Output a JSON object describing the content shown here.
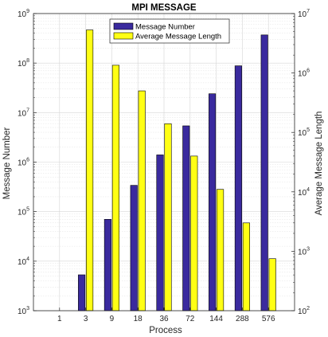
{
  "chart_data": {
    "type": "bar",
    "title": "MPI MESSAGE",
    "xlabel": "Process",
    "categories": [
      "1",
      "3",
      "9",
      "18",
      "36",
      "72",
      "144",
      "288",
      "576"
    ],
    "left_axis": {
      "label": "Message Number",
      "scale": "log",
      "ylim": [
        1000,
        1000000000
      ],
      "ticks": [
        {
          "base": "10",
          "exp": "3"
        },
        {
          "base": "10",
          "exp": "4"
        },
        {
          "base": "10",
          "exp": "5"
        },
        {
          "base": "10",
          "exp": "6"
        },
        {
          "base": "10",
          "exp": "7"
        },
        {
          "base": "10",
          "exp": "8"
        },
        {
          "base": "10",
          "exp": "9"
        }
      ]
    },
    "right_axis": {
      "label": "Average Message Length",
      "scale": "log",
      "ylim": [
        100,
        10000000
      ],
      "ticks": [
        {
          "base": "10",
          "exp": "2"
        },
        {
          "base": "10",
          "exp": "3"
        },
        {
          "base": "10",
          "exp": "4"
        },
        {
          "base": "10",
          "exp": "5"
        },
        {
          "base": "10",
          "exp": "6"
        },
        {
          "base": "10",
          "exp": "7"
        }
      ]
    },
    "series": [
      {
        "name": "Message Number",
        "axis": "left",
        "color": "#3a2a9e",
        "values": [
          null,
          5300,
          70000,
          340000,
          1400000,
          5400000,
          24000000,
          88000000,
          370000000
        ]
      },
      {
        "name": "Average Message Length",
        "axis": "right",
        "color": "#ffff14",
        "values": [
          null,
          5300000,
          1350000,
          500000,
          140000,
          40000,
          11000,
          3000,
          750
        ]
      }
    ],
    "grid": true,
    "legend_position": "top-center"
  }
}
